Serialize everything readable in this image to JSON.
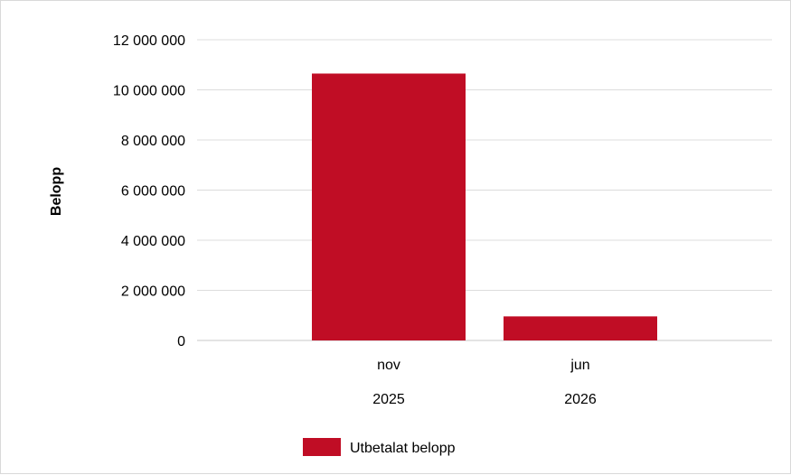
{
  "chart_data": {
    "type": "bar",
    "ylabel": "Belopp",
    "xlabel": "",
    "ylim": [
      0,
      12000000
    ],
    "yticks": [
      0,
      2000000,
      4000000,
      6000000,
      8000000,
      10000000,
      12000000
    ],
    "ytick_labels": [
      "0",
      "2 000 000",
      "4 000 000",
      "6 000 000",
      "8 000 000",
      "10 000 000",
      "12 000 000"
    ],
    "grid": true,
    "categories": [
      {
        "month": "nov",
        "year": "2025"
      },
      {
        "month": "jun",
        "year": "2026"
      }
    ],
    "series": [
      {
        "name": "Utbetalat belopp",
        "color": "#c00d25",
        "values": [
          10650000,
          960000
        ]
      }
    ],
    "legend": {
      "position": "bottom",
      "labels": [
        "Utbetalat belopp"
      ]
    }
  }
}
